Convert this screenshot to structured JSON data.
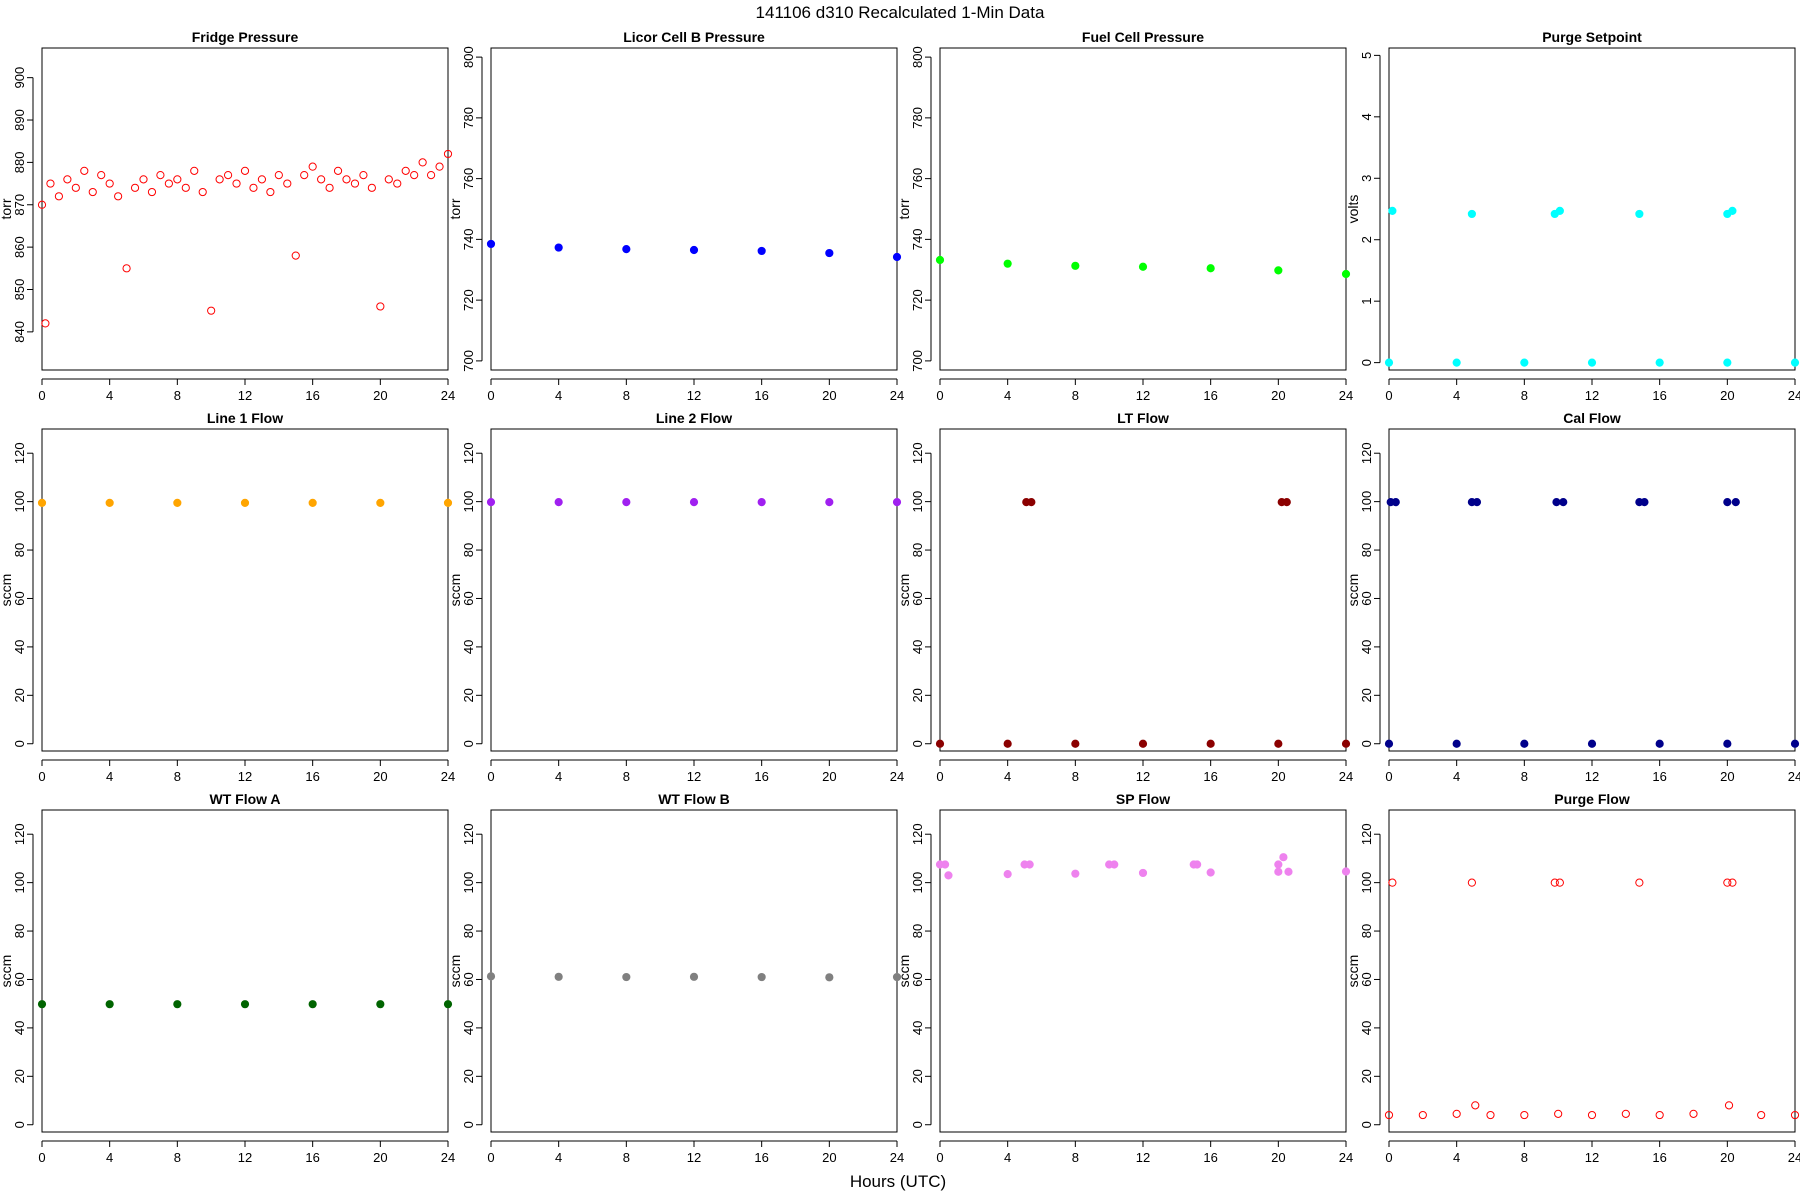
{
  "figure": {
    "title": "141106   d310   Recalculated 1-Min Data",
    "xlabel": "Hours (UTC)"
  },
  "chart_data": [
    {
      "type": "scatter",
      "title": "Fridge Pressure",
      "ylabel": "torr",
      "xlim": [
        0,
        24
      ],
      "ylim": [
        831,
        907
      ],
      "x_ticks": [
        0,
        4,
        8,
        12,
        16,
        20,
        24
      ],
      "y_ticks": [
        840,
        850,
        860,
        870,
        880,
        890,
        900
      ],
      "color": "#ff0000",
      "marker": "open-circle",
      "series": [
        {
          "x": [
            0,
            0.2,
            0.5,
            1,
            1.5,
            2,
            2.5,
            3,
            3.5,
            4,
            4.5,
            5,
            5.5,
            6,
            6.5,
            7,
            7.5,
            8,
            8.5,
            9,
            9.5,
            10,
            10.5,
            11,
            11.5,
            12,
            12.5,
            13,
            13.5,
            14,
            14.5,
            15,
            15.5,
            16,
            16.5,
            17,
            17.5,
            18,
            18.5,
            19,
            19.5,
            20,
            20.5,
            21,
            21.5,
            22,
            22.5,
            23,
            23.5,
            24
          ],
          "y": [
            870,
            842,
            875,
            872,
            876,
            874,
            878,
            873,
            877,
            875,
            872,
            855,
            874,
            876,
            873,
            877,
            875,
            876,
            874,
            878,
            873,
            845,
            876,
            877,
            875,
            878,
            874,
            876,
            873,
            877,
            875,
            858,
            877,
            879,
            876,
            874,
            878,
            876,
            875,
            877,
            874,
            846,
            876,
            875,
            878,
            877,
            880,
            877,
            879,
            882
          ]
        }
      ]
    },
    {
      "type": "scatter",
      "title": "Licor Cell B Pressure",
      "ylabel": "torr",
      "xlim": [
        0,
        24
      ],
      "ylim": [
        697,
        803
      ],
      "x_ticks": [
        0,
        4,
        8,
        12,
        16,
        20,
        24
      ],
      "y_ticks": [
        700,
        720,
        740,
        760,
        780,
        800
      ],
      "color": "#0000ff",
      "marker": "filled-circle",
      "series": [
        {
          "x": [
            0,
            4,
            8,
            12,
            16,
            20,
            24
          ],
          "y": [
            738.5,
            737.3,
            736.8,
            736.5,
            736.2,
            735.5,
            734.2
          ]
        }
      ]
    },
    {
      "type": "scatter",
      "title": "Fuel Cell Pressure",
      "ylabel": "torr",
      "xlim": [
        0,
        24
      ],
      "ylim": [
        697,
        803
      ],
      "x_ticks": [
        0,
        4,
        8,
        12,
        16,
        20,
        24
      ],
      "y_ticks": [
        700,
        720,
        740,
        760,
        780,
        800
      ],
      "color": "#00ff00",
      "marker": "filled-circle",
      "series": [
        {
          "x": [
            0,
            4,
            8,
            12,
            16,
            20,
            24
          ],
          "y": [
            733.2,
            732,
            731.3,
            731,
            730.5,
            729.8,
            728.6
          ]
        }
      ]
    },
    {
      "type": "scatter",
      "title": "Purge Setpoint",
      "ylabel": "volts",
      "xlim": [
        0,
        24
      ],
      "ylim": [
        -0.12,
        5.12
      ],
      "x_ticks": [
        0,
        4,
        8,
        12,
        16,
        20,
        24
      ],
      "y_ticks": [
        0,
        1,
        2,
        3,
        4,
        5
      ],
      "color": "#00ffff",
      "marker": "filled-circle",
      "series": [
        {
          "x": [
            0,
            4,
            8,
            12,
            16,
            20,
            24
          ],
          "y": [
            0,
            0,
            0,
            0,
            0,
            0,
            0
          ]
        },
        {
          "x": [
            0.2,
            4.9,
            9.8,
            10.1,
            14.8,
            20,
            20.3
          ],
          "y": [
            2.47,
            2.42,
            2.42,
            2.47,
            2.42,
            2.42,
            2.47
          ]
        }
      ]
    },
    {
      "type": "scatter",
      "title": "Line 1 Flow",
      "ylabel": "sccm",
      "xlim": [
        0,
        24
      ],
      "ylim": [
        -3,
        130
      ],
      "x_ticks": [
        0,
        4,
        8,
        12,
        16,
        20,
        24
      ],
      "y_ticks": [
        0,
        20,
        40,
        60,
        80,
        100,
        120
      ],
      "color": "#ffa500",
      "marker": "filled-circle",
      "series": [
        {
          "x": [
            0,
            4,
            8,
            12,
            16,
            20,
            24
          ],
          "y": [
            99.5,
            99.5,
            99.5,
            99.5,
            99.5,
            99.5,
            99.5
          ]
        }
      ]
    },
    {
      "type": "scatter",
      "title": "Line 2 Flow",
      "ylabel": "sccm",
      "xlim": [
        0,
        24
      ],
      "ylim": [
        -3,
        130
      ],
      "x_ticks": [
        0,
        4,
        8,
        12,
        16,
        20,
        24
      ],
      "y_ticks": [
        0,
        20,
        40,
        60,
        80,
        100,
        120
      ],
      "color": "#a020f0",
      "marker": "filled-circle",
      "series": [
        {
          "x": [
            0,
            4,
            8,
            12,
            16,
            20,
            24
          ],
          "y": [
            99.8,
            99.8,
            99.8,
            99.8,
            99.8,
            99.8,
            99.8
          ]
        }
      ]
    },
    {
      "type": "scatter",
      "title": "LT Flow",
      "ylabel": "sccm",
      "xlim": [
        0,
        24
      ],
      "ylim": [
        -3,
        130
      ],
      "x_ticks": [
        0,
        4,
        8,
        12,
        16,
        20,
        24
      ],
      "y_ticks": [
        0,
        20,
        40,
        60,
        80,
        100,
        120
      ],
      "color": "#8b0000",
      "marker": "filled-circle",
      "series": [
        {
          "x": [
            0,
            4,
            8,
            12,
            16,
            20,
            24
          ],
          "y": [
            0,
            0,
            0,
            0,
            0,
            0,
            0
          ]
        },
        {
          "x": [
            5.1,
            5.4,
            20.2,
            20.5
          ],
          "y": [
            99.8,
            99.8,
            99.8,
            99.8
          ]
        }
      ]
    },
    {
      "type": "scatter",
      "title": "Cal Flow",
      "ylabel": "sccm",
      "xlim": [
        0,
        24
      ],
      "ylim": [
        -3,
        130
      ],
      "x_ticks": [
        0,
        4,
        8,
        12,
        16,
        20,
        24
      ],
      "y_ticks": [
        0,
        20,
        40,
        60,
        80,
        100,
        120
      ],
      "color": "#00008b",
      "marker": "filled-circle",
      "series": [
        {
          "x": [
            0,
            4,
            8,
            12,
            16,
            20,
            24
          ],
          "y": [
            0,
            0,
            0,
            0,
            0,
            0,
            0
          ]
        },
        {
          "x": [
            0.1,
            0.4,
            4.9,
            5.2,
            9.9,
            10.3,
            14.8,
            15.1,
            20,
            20.5
          ],
          "y": [
            99.8,
            99.8,
            99.8,
            99.8,
            99.8,
            99.8,
            99.8,
            99.8,
            99.8,
            99.8
          ]
        }
      ]
    },
    {
      "type": "scatter",
      "title": "WT Flow A",
      "ylabel": "sccm",
      "xlim": [
        0,
        24
      ],
      "ylim": [
        -3,
        130
      ],
      "x_ticks": [
        0,
        4,
        8,
        12,
        16,
        20,
        24
      ],
      "y_ticks": [
        0,
        20,
        40,
        60,
        80,
        100,
        120
      ],
      "color": "#006400",
      "marker": "filled-circle",
      "series": [
        {
          "x": [
            0,
            4,
            8,
            12,
            16,
            20,
            24
          ],
          "y": [
            49.8,
            49.8,
            49.8,
            49.8,
            49.8,
            49.8,
            49.8
          ]
        }
      ]
    },
    {
      "type": "scatter",
      "title": "WT Flow B",
      "ylabel": "sccm",
      "xlim": [
        0,
        24
      ],
      "ylim": [
        -3,
        130
      ],
      "x_ticks": [
        0,
        4,
        8,
        12,
        16,
        20,
        24
      ],
      "y_ticks": [
        0,
        20,
        40,
        60,
        80,
        100,
        120
      ],
      "color": "#808080",
      "marker": "filled-circle",
      "series": [
        {
          "x": [
            0,
            4,
            8,
            12,
            16,
            20,
            24
          ],
          "y": [
            61.3,
            61.1,
            61,
            61.1,
            61,
            60.9,
            61
          ]
        }
      ]
    },
    {
      "type": "scatter",
      "title": "SP Flow",
      "ylabel": "sccm",
      "xlim": [
        0,
        24
      ],
      "ylim": [
        -3,
        130
      ],
      "x_ticks": [
        0,
        4,
        8,
        12,
        16,
        20,
        24
      ],
      "y_ticks": [
        0,
        20,
        40,
        60,
        80,
        100,
        120
      ],
      "color": "#ee82ee",
      "marker": "filled-circle",
      "series": [
        {
          "x": [
            0.5,
            4,
            8,
            12,
            16,
            20,
            20.6,
            24
          ],
          "y": [
            103,
            103.5,
            103.7,
            104,
            104.2,
            104.5,
            104.5,
            104.6
          ]
        },
        {
          "x": [
            0,
            0.3,
            5,
            5.3,
            10,
            10.3,
            15,
            15.2,
            20,
            20.3
          ],
          "y": [
            107.5,
            107.5,
            107.5,
            107.5,
            107.5,
            107.5,
            107.5,
            107.5,
            107.5,
            110.5
          ]
        }
      ]
    },
    {
      "type": "scatter",
      "title": "Purge Flow",
      "ylabel": "sccm",
      "xlim": [
        0,
        24
      ],
      "ylim": [
        -3,
        130
      ],
      "x_ticks": [
        0,
        4,
        8,
        12,
        16,
        20,
        24
      ],
      "y_ticks": [
        0,
        20,
        40,
        60,
        80,
        100,
        120
      ],
      "color": "#ff0000",
      "marker": "open-circle",
      "series": [
        {
          "x": [
            0,
            2,
            4,
            5.1,
            6,
            8,
            10,
            12,
            14,
            16,
            18,
            20.1,
            22,
            24
          ],
          "y": [
            4,
            4,
            4.5,
            8,
            4,
            4,
            4.5,
            4,
            4.5,
            4,
            4.5,
            8,
            4,
            4
          ]
        },
        {
          "x": [
            0.2,
            4.9,
            9.8,
            10.1,
            14.8,
            20,
            20.3
          ],
          "y": [
            100,
            100,
            100,
            100,
            100,
            100,
            100
          ]
        }
      ]
    }
  ]
}
